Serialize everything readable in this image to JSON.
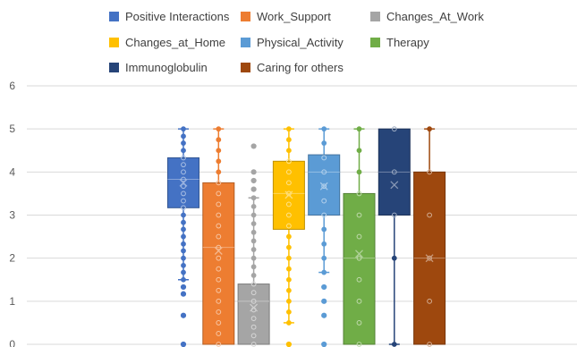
{
  "chart_data": {
    "type": "boxplot",
    "title": "",
    "xlabel": "",
    "ylabel": "",
    "ylim": [
      0,
      6
    ],
    "yticks": [
      "0",
      "1",
      "2",
      "3",
      "4",
      "5",
      "6"
    ],
    "grid": true,
    "legend_position": "top",
    "series": [
      {
        "name": "Positive Interactions",
        "color": "#4472C4",
        "whisker_low": 1.5,
        "q1": 3.17,
        "median": 3.83,
        "q3": 4.33,
        "whisker_high": 5,
        "mean": 3.75,
        "points": [
          5,
          4.83,
          4.67,
          4.5,
          4.33,
          4.17,
          4,
          3.83,
          3.67,
          3.5,
          3.33,
          3.17,
          3,
          2.83,
          2.67,
          2.5,
          2.33,
          2.17,
          2,
          1.83,
          1.67,
          1.5
        ],
        "outliers": [
          1.33,
          1.17,
          0.67,
          0
        ]
      },
      {
        "name": "Work_Support",
        "color": "#ED7D31",
        "whisker_low": 0,
        "q1": 0,
        "median": 2.25,
        "q3": 3.75,
        "whisker_high": 5,
        "mean": 2.17,
        "points": [
          5,
          4.75,
          4.5,
          4.25,
          4,
          3.75,
          3.5,
          3.25,
          3,
          2.75,
          2.5,
          2.25,
          2,
          1.75,
          1.5,
          1.25,
          1,
          0.75,
          0.5,
          0.25,
          0
        ],
        "outliers": []
      },
      {
        "name": "Changes_At_Work",
        "color": "#A5A5A5",
        "whisker_low": 0,
        "q1": 0,
        "median": 1,
        "q3": 1.4,
        "whisker_high": 3.4,
        "mean": 0.85,
        "points": [
          3.4,
          3.2,
          3,
          2.8,
          2.6,
          2.4,
          2.2,
          2,
          1.8,
          1.6,
          1.4,
          1.2,
          1,
          0.8,
          0.6,
          0.4,
          0.2,
          0
        ],
        "outliers": [
          4.6,
          4,
          3.8,
          3.6
        ]
      },
      {
        "name": "Changes_at_Home",
        "color": "#FFC000",
        "whisker_low": 0.5,
        "q1": 2.67,
        "median": 3.5,
        "q3": 4.25,
        "whisker_high": 5,
        "mean": 3.47,
        "points": [
          5,
          4.75,
          4.5,
          4.25,
          4,
          3.75,
          3.5,
          3.25,
          3,
          2.75,
          2.5,
          2.25,
          2,
          1.75,
          1.5,
          1.25,
          1,
          0.75,
          0.5
        ],
        "outliers": [
          0
        ]
      },
      {
        "name": "Physical_Activity",
        "color": "#5B9BD5",
        "whisker_low": 1.67,
        "q1": 3,
        "median": 4,
        "q3": 4.4,
        "whisker_high": 5,
        "mean": 3.67,
        "points": [
          5,
          4.67,
          4.33,
          4,
          3.67,
          3.33,
          3,
          2.67,
          2.33,
          2,
          1.67
        ],
        "outliers": [
          1.33,
          1,
          0.67,
          0
        ]
      },
      {
        "name": "Therapy",
        "color": "#70AD47",
        "whisker_low": 0,
        "q1": 0,
        "median": 2,
        "q3": 3.5,
        "whisker_high": 5,
        "mean": 2.1,
        "points": [
          5,
          4.5,
          4,
          3.5,
          3,
          2.5,
          2,
          1.5,
          1,
          0.5,
          0
        ],
        "outliers": []
      },
      {
        "name": "Immunoglobulin",
        "color": "#264478",
        "whisker_low": 0,
        "q1": 3,
        "median": 4,
        "q3": 5,
        "whisker_high": 5,
        "mean": 3.7,
        "points": [
          5,
          4,
          3,
          2,
          0
        ],
        "outliers": []
      },
      {
        "name": "Caring for others",
        "color": "#9E480E",
        "whisker_low": 0,
        "q1": 0,
        "median": 2,
        "q3": 4,
        "whisker_high": 5,
        "mean": 2,
        "points": [
          5,
          4,
          3,
          2,
          1,
          0
        ],
        "outliers": []
      }
    ]
  }
}
